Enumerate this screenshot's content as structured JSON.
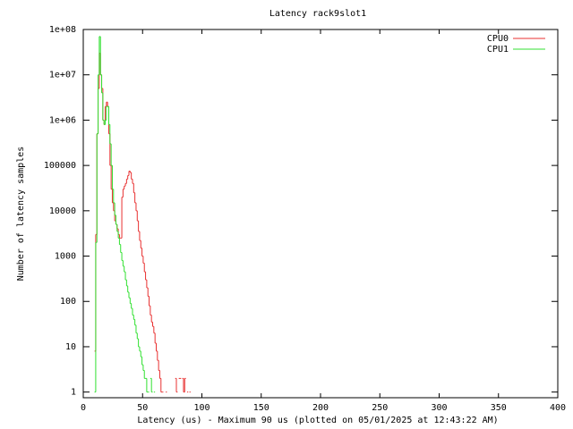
{
  "chart_data": {
    "type": "step",
    "title": "Latency rack9slot1",
    "x_label": "Latency (us) - Maximum 90 us (plotted on 05/01/2025 at 12:43:22 AM)",
    "y_label": "Number of latency samples",
    "log_y": true,
    "grid": false,
    "legend": "top-right",
    "xlim": [
      0,
      400
    ],
    "xticks": [
      0,
      50,
      100,
      150,
      200,
      250,
      300,
      350,
      400
    ],
    "ylim": [
      0.75,
      100000000
    ],
    "yticks": [
      1,
      10,
      100,
      1000,
      10000,
      100000,
      {
        "value": 1000000,
        "label": "1e+06"
      },
      {
        "value": 10000000,
        "label": "1e+07"
      },
      {
        "value": 100000000,
        "label": "1e+08"
      }
    ],
    "x": [
      9,
      10,
      11,
      12,
      13,
      14,
      15,
      16,
      17,
      18,
      19,
      20,
      21,
      22,
      23,
      24,
      25,
      26,
      27,
      28,
      29,
      30,
      31,
      32,
      33,
      34,
      35,
      36,
      37,
      38,
      39,
      40,
      41,
      42,
      43,
      44,
      45,
      46,
      47,
      48,
      49,
      50,
      51,
      52,
      53,
      54,
      55,
      56,
      57,
      58,
      59,
      60,
      61,
      62,
      63,
      64,
      65,
      66,
      67,
      68,
      69,
      70,
      71,
      72,
      73,
      74,
      75,
      76,
      77,
      78,
      79,
      80,
      81,
      82,
      83,
      84,
      85,
      86,
      87,
      88,
      89,
      90
    ],
    "series": [
      {
        "name": "CPU0",
        "color": "#e83030",
        "values": [
          null,
          8,
          3000,
          500000,
          5000000,
          30000000,
          10000000,
          5000000,
          1000000,
          800000,
          2000000,
          2500000,
          2000000,
          500000,
          100000,
          30000,
          15000,
          10000,
          6000,
          5000,
          4000,
          3000,
          2500,
          2500,
          20000,
          30000,
          35000,
          40000,
          50000,
          60000,
          75000,
          70000,
          50000,
          40000,
          25000,
          15000,
          10000,
          6000,
          3500,
          2200,
          1500,
          1000,
          700,
          450,
          300,
          200,
          130,
          80,
          50,
          35,
          28,
          20,
          12,
          8,
          5,
          3,
          2,
          1,
          1,
          null,
          null,
          1,
          null,
          null,
          null,
          null,
          null,
          null,
          null,
          2,
          1,
          null,
          2,
          2,
          null,
          2,
          1,
          2,
          null,
          1,
          null,
          1
        ]
      },
      {
        "name": "CPU1",
        "color": "#30e030",
        "values": [
          null,
          1,
          2000,
          500000,
          10000000,
          70000000,
          10000000,
          4000000,
          1000000,
          800000,
          1000000,
          2000000,
          2000000,
          800000,
          300000,
          100000,
          30000,
          15000,
          8000,
          5000,
          3500,
          2500,
          1800,
          1200,
          800,
          600,
          450,
          300,
          220,
          160,
          120,
          90,
          70,
          50,
          40,
          30,
          20,
          15,
          10,
          8,
          6,
          4,
          3,
          2,
          2,
          1,
          1,
          null,
          2,
          1,
          null,
          1,
          null,
          null,
          null,
          null,
          null,
          null,
          null,
          null,
          null,
          null,
          null,
          null,
          null,
          null,
          null,
          null,
          null,
          null,
          null,
          null,
          null,
          null,
          null,
          null,
          null,
          null,
          null,
          null,
          null,
          null
        ]
      }
    ]
  }
}
